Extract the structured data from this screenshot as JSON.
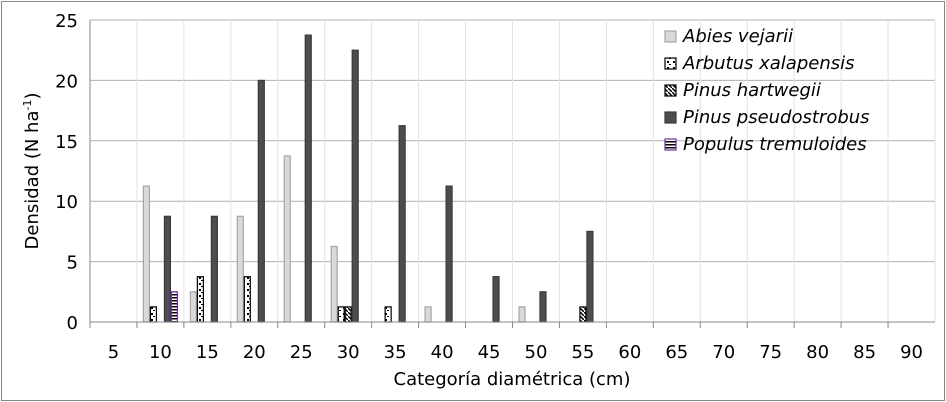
{
  "chart_data": {
    "type": "bar",
    "title": "",
    "xlabel": "Categoría diamétrica (cm)",
    "ylabel": "Densidad (N ha-1)",
    "ylabel_parts": {
      "main": "Densidad (N ha",
      "sup": "-1",
      "end": ")"
    },
    "ylim": [
      0,
      25
    ],
    "yticks": [
      0,
      5,
      10,
      15,
      20,
      25
    ],
    "grid": "horizontal",
    "legend_position": "top-right",
    "categories": [
      "5",
      "10",
      "15",
      "20",
      "25",
      "30",
      "35",
      "40",
      "45",
      "50",
      "55",
      "60",
      "65",
      "70",
      "75",
      "80",
      "85",
      "90"
    ],
    "series": [
      {
        "name": "Abies vejarii",
        "pattern": "solid-light",
        "color": "#d9d9d9",
        "values": [
          0,
          11.25,
          2.5,
          8.75,
          13.75,
          6.25,
          0,
          1.25,
          0,
          1.25,
          0,
          0,
          0,
          0,
          0,
          0,
          0,
          0
        ]
      },
      {
        "name": "Arbutus xalapensis",
        "pattern": "dotted",
        "color": "#000000",
        "values": [
          0,
          1.25,
          3.75,
          3.75,
          0,
          1.25,
          1.25,
          0,
          0,
          0,
          0,
          0,
          0,
          0,
          0,
          0,
          0,
          0
        ]
      },
      {
        "name": "Pinus hartwegii",
        "pattern": "diagonal",
        "color": "#000000",
        "values": [
          0,
          0,
          0,
          0,
          0,
          1.25,
          0,
          0,
          0,
          0,
          1.25,
          0,
          0,
          0,
          0,
          0,
          0,
          0
        ]
      },
      {
        "name": "Pinus pseudostrobus",
        "pattern": "solid-dark",
        "color": "#4d4d4d",
        "values": [
          0,
          8.75,
          8.75,
          20,
          23.75,
          22.5,
          16.25,
          11.25,
          3.75,
          2.5,
          7.5,
          0,
          0,
          0,
          0,
          0,
          0,
          0
        ]
      },
      {
        "name": "Populus tremuloides",
        "pattern": "horizontal-stripes",
        "color": "#7030a0",
        "values": [
          0,
          2.5,
          0,
          0,
          0,
          0,
          0,
          0,
          0,
          0,
          0,
          0,
          0,
          0,
          0,
          0,
          0,
          0
        ]
      }
    ]
  }
}
